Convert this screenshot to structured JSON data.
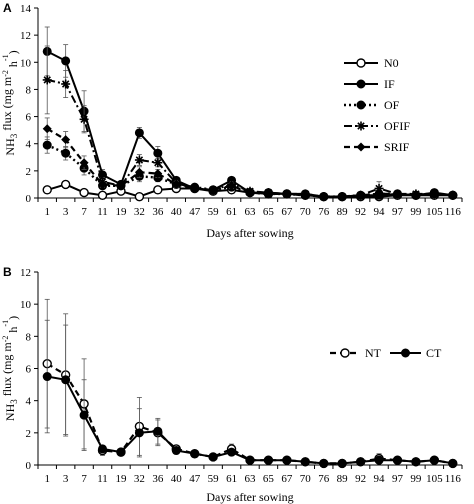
{
  "chart_data": [
    {
      "type": "line",
      "panel_label": "A",
      "categories": [
        "1",
        "3",
        "7",
        "11",
        "19",
        "32",
        "36",
        "40",
        "47",
        "59",
        "61",
        "63",
        "65",
        "67",
        "70",
        "76",
        "89",
        "92",
        "94",
        "97",
        "99",
        "105",
        "116"
      ],
      "xlabel": "Days after sowing",
      "ylabel_parts": [
        "NH",
        "3",
        " flux (mg m",
        "-2",
        " h",
        "-1",
        ")"
      ],
      "ylim": [
        0,
        14
      ],
      "yticks": [
        0,
        2,
        4,
        6,
        8,
        10,
        12,
        14
      ],
      "legend_position": "right",
      "series": [
        {
          "name": "N0",
          "style": "open-circle-solid",
          "values": [
            0.6,
            1.0,
            0.4,
            0.2,
            0.5,
            0.1,
            0.6,
            0.7,
            0.7,
            0.5,
            0.6,
            0.4,
            0.3,
            0.3,
            0.2,
            0.1,
            0.1,
            0.1,
            0.1,
            0.2,
            0.2,
            0.2,
            0.2
          ],
          "errors": [
            0.1,
            0.1,
            0.1,
            0.1,
            0.1,
            0.1,
            0.1,
            0.1,
            0.1,
            0.1,
            0.1,
            0.1,
            0.1,
            0.1,
            0.1,
            0.1,
            0.1,
            0.1,
            0.1,
            0.1,
            0.1,
            0.1,
            0.1
          ]
        },
        {
          "name": "IF",
          "style": "filled-circle-solid",
          "values": [
            10.8,
            10.1,
            6.4,
            1.7,
            1.0,
            4.8,
            3.3,
            1.3,
            0.7,
            0.6,
            1.3,
            0.4,
            0.4,
            0.3,
            0.3,
            0.1,
            0.1,
            0.2,
            0.2,
            0.3,
            0.2,
            0.4,
            0.2
          ],
          "errors": [
            1.8,
            1.2,
            1.5,
            0.4,
            0.2,
            0.4,
            0.5,
            0.2,
            0.1,
            0.1,
            0.2,
            0.1,
            0.1,
            0.1,
            0.1,
            0.1,
            0.1,
            0.1,
            0.1,
            0.1,
            0.1,
            0.1,
            0.1
          ]
        },
        {
          "name": "OF",
          "style": "filled-circle-dotted",
          "values": [
            3.9,
            3.3,
            2.2,
            0.9,
            0.9,
            1.6,
            1.5,
            1.0,
            0.8,
            0.6,
            0.8,
            0.4,
            0.3,
            0.3,
            0.2,
            0.1,
            0.1,
            0.2,
            0.3,
            0.3,
            0.2,
            0.3,
            0.2
          ],
          "errors": [
            0.6,
            0.5,
            0.5,
            0.2,
            0.1,
            0.4,
            0.3,
            0.2,
            0.1,
            0.1,
            0.2,
            0.1,
            0.1,
            0.1,
            0.1,
            0.1,
            0.1,
            0.1,
            0.1,
            0.1,
            0.1,
            0.1,
            0.1
          ]
        },
        {
          "name": "OFIF",
          "style": "star-dash-dot",
          "values": [
            8.7,
            8.4,
            5.8,
            1.2,
            0.9,
            2.8,
            2.6,
            1.1,
            0.7,
            0.6,
            1.0,
            0.5,
            0.4,
            0.3,
            0.3,
            0.1,
            0.1,
            0.2,
            0.7,
            0.3,
            0.3,
            0.3,
            0.2
          ],
          "errors": [
            2.5,
            1.0,
            1.0,
            0.3,
            0.1,
            0.4,
            0.3,
            0.2,
            0.1,
            0.1,
            0.2,
            0.1,
            0.1,
            0.1,
            0.1,
            0.1,
            0.1,
            0.1,
            0.5,
            0.1,
            0.1,
            0.1,
            0.1
          ]
        },
        {
          "name": "SRIF",
          "style": "diamond-dashed",
          "values": [
            5.1,
            4.3,
            2.6,
            1.0,
            0.9,
            1.9,
            1.8,
            1.0,
            0.7,
            0.6,
            0.9,
            0.4,
            0.3,
            0.3,
            0.2,
            0.1,
            0.1,
            0.2,
            0.3,
            0.3,
            0.2,
            0.3,
            0.2
          ],
          "errors": [
            0.8,
            0.6,
            0.5,
            0.2,
            0.1,
            0.4,
            0.3,
            0.2,
            0.1,
            0.1,
            0.2,
            0.1,
            0.1,
            0.1,
            0.1,
            0.1,
            0.1,
            0.1,
            0.1,
            0.1,
            0.1,
            0.1,
            0.1
          ]
        }
      ]
    },
    {
      "type": "line",
      "panel_label": "B",
      "categories": [
        "1",
        "3",
        "7",
        "11",
        "19",
        "32",
        "36",
        "40",
        "47",
        "59",
        "61",
        "63",
        "65",
        "67",
        "70",
        "76",
        "89",
        "92",
        "94",
        "97",
        "99",
        "105",
        "116"
      ],
      "xlabel": "Days after sowing",
      "ylabel_parts": [
        "NH",
        "3",
        " flux (mg m",
        "-2",
        " h",
        "-1",
        ")"
      ],
      "ylim": [
        0,
        12
      ],
      "yticks": [
        0,
        2,
        4,
        6,
        8,
        10,
        12
      ],
      "legend_position": "top-right",
      "series": [
        {
          "name": "NT",
          "style": "open-circle-dashed",
          "values": [
            6.3,
            5.6,
            3.8,
            0.9,
            0.8,
            2.4,
            2.0,
            1.0,
            0.7,
            0.5,
            1.0,
            0.3,
            0.3,
            0.3,
            0.2,
            0.1,
            0.1,
            0.2,
            0.4,
            0.3,
            0.2,
            0.3,
            0.1
          ],
          "errors": [
            4.0,
            3.8,
            2.8,
            0.3,
            0.2,
            1.8,
            0.8,
            0.2,
            0.1,
            0.1,
            0.3,
            0.1,
            0.1,
            0.1,
            0.1,
            0.1,
            0.1,
            0.1,
            0.3,
            0.1,
            0.1,
            0.1,
            0.1
          ]
        },
        {
          "name": "CT",
          "style": "filled-circle-solid",
          "values": [
            5.5,
            5.3,
            3.1,
            1.0,
            0.8,
            2.0,
            2.1,
            0.9,
            0.7,
            0.5,
            0.8,
            0.3,
            0.3,
            0.3,
            0.2,
            0.1,
            0.1,
            0.2,
            0.3,
            0.3,
            0.2,
            0.3,
            0.1
          ],
          "errors": [
            3.5,
            3.4,
            2.2,
            0.2,
            0.2,
            1.5,
            0.8,
            0.2,
            0.1,
            0.1,
            0.2,
            0.1,
            0.1,
            0.1,
            0.1,
            0.1,
            0.1,
            0.1,
            0.2,
            0.1,
            0.1,
            0.1,
            0.1
          ]
        }
      ]
    }
  ]
}
